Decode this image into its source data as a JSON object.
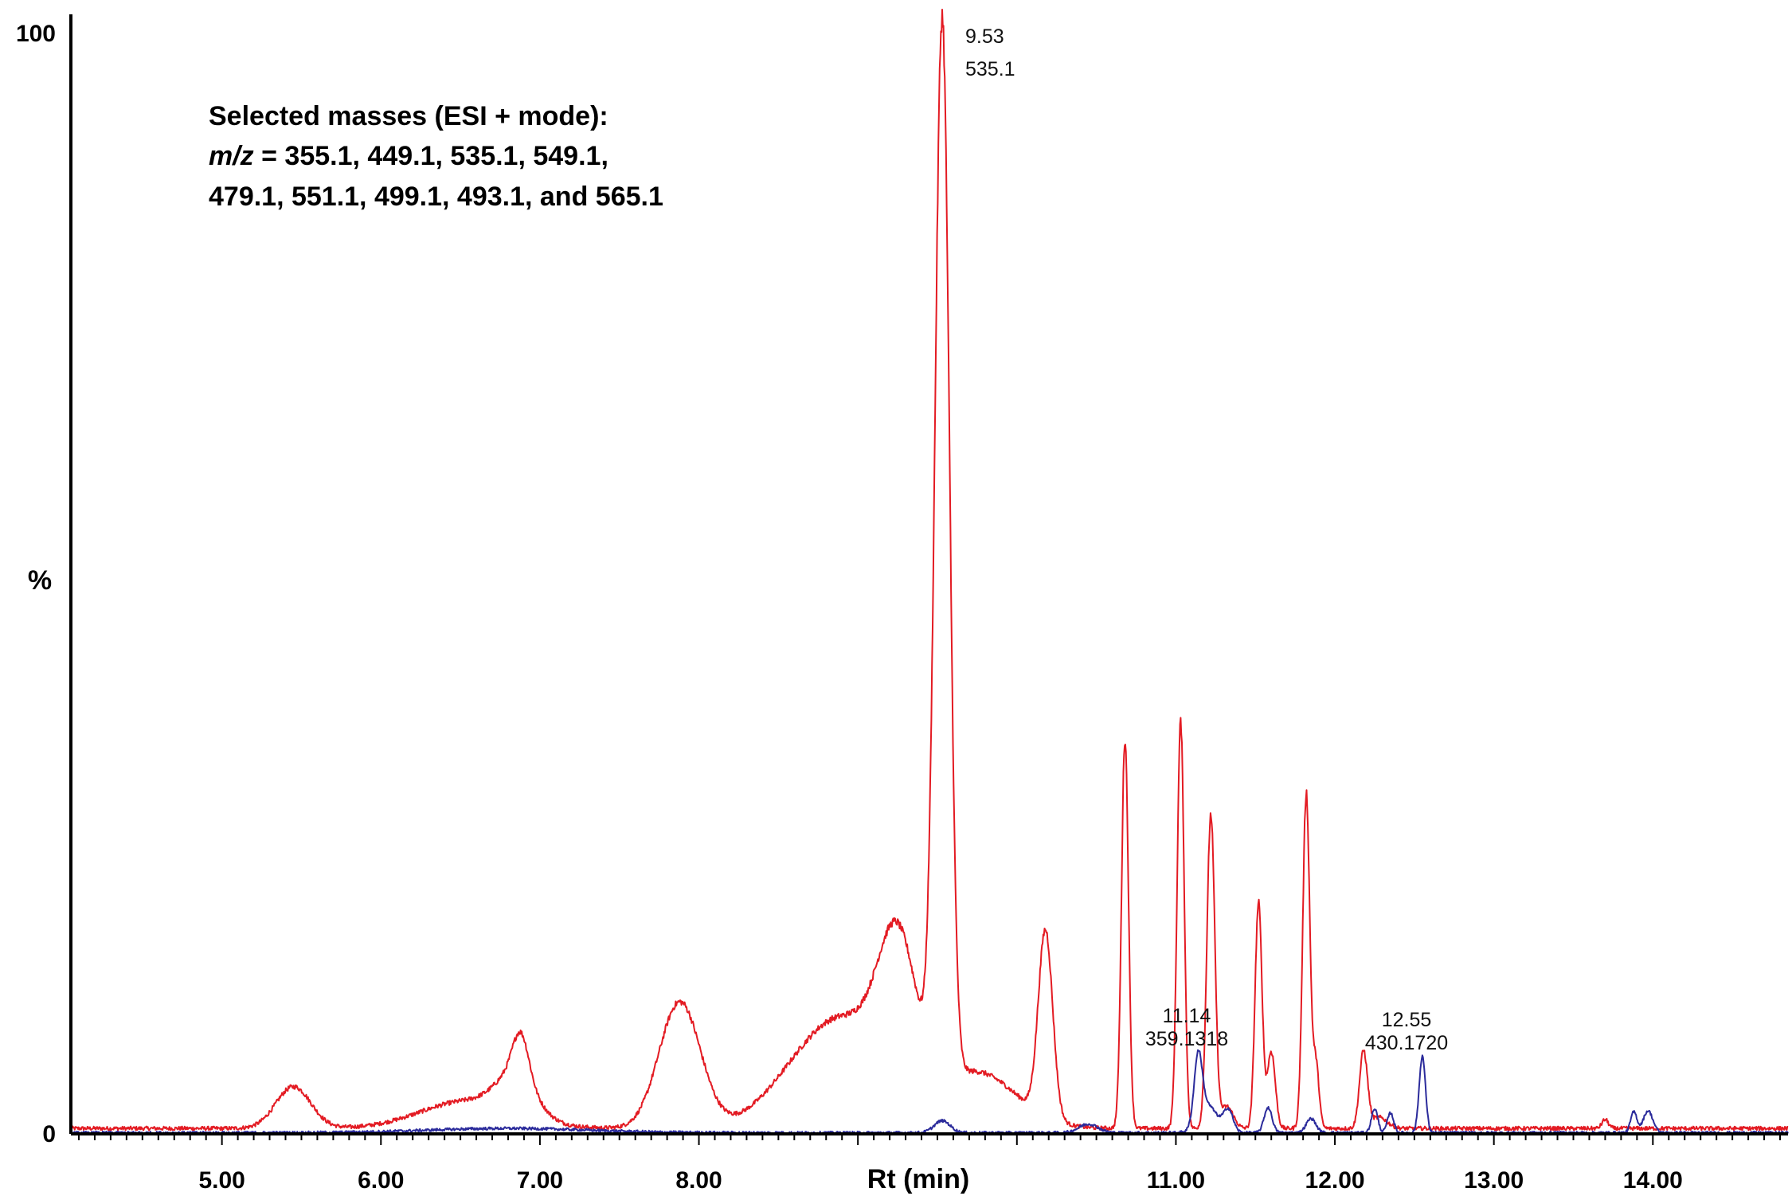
{
  "chart_data": {
    "type": "line",
    "title": "",
    "xlabel": "Rt (min)",
    "ylabel": "%",
    "xlim": [
      4.05,
      14.85
    ],
    "ylim": [
      0,
      100
    ],
    "x_ticks": [
      "5.00",
      "6.00",
      "7.00",
      "8.00",
      "11.00",
      "12.00",
      "13.00",
      "14.00"
    ],
    "x_tick_values": [
      5,
      6,
      7,
      8,
      11,
      12,
      13,
      14
    ],
    "y_ticks": [
      "0",
      "100"
    ],
    "y_tick_values": [
      0,
      100
    ],
    "grid": false,
    "legend": "none",
    "annotation": {
      "line1": "Selected masses (ESI + mode):",
      "line2_italic": "m/z",
      "line2_rest": " = 355.1, 449.1, 535.1, 549.1,",
      "line3": "479.1, 551.1, 499.1, 493.1, and 565.1"
    },
    "peak_labels": [
      {
        "rt": "9.53",
        "mz": "535.1",
        "x": 9.53,
        "y": 99
      },
      {
        "rt": "11.14",
        "mz": "359.1318",
        "x": 11.14,
        "y": 8.5
      },
      {
        "rt": "12.55",
        "mz": "430.1720",
        "x": 12.55,
        "y": 7.5
      }
    ],
    "series": [
      {
        "color": "#e31b23",
        "baseline": 0.5,
        "peaks": [
          {
            "x": 5.45,
            "h": 3.8,
            "w": 0.11
          },
          {
            "x": 6.55,
            "h": 2.5,
            "w": 0.3
          },
          {
            "x": 6.85,
            "h": 3.5,
            "w": 0.12
          },
          {
            "x": 6.88,
            "h": 4.0,
            "w": 0.05
          },
          {
            "x": 7.88,
            "h": 11.5,
            "w": 0.13
          },
          {
            "x": 8.5,
            "h": 0.6,
            "w": 0.2
          },
          {
            "x": 8.9,
            "h": 10.0,
            "w": 0.3
          },
          {
            "x": 9.25,
            "h": 13.0,
            "w": 0.12
          },
          {
            "x": 9.53,
            "h": 96.0,
            "w": 0.045
          },
          {
            "x": 9.75,
            "h": 5.0,
            "w": 0.25
          },
          {
            "x": 10.18,
            "h": 17.0,
            "w": 0.045
          },
          {
            "x": 10.68,
            "h": 35.5,
            "w": 0.022
          },
          {
            "x": 11.03,
            "h": 37.0,
            "w": 0.022
          },
          {
            "x": 11.22,
            "h": 28.5,
            "w": 0.025
          },
          {
            "x": 11.32,
            "h": 2.0,
            "w": 0.04
          },
          {
            "x": 11.52,
            "h": 20.5,
            "w": 0.022
          },
          {
            "x": 11.6,
            "h": 7.0,
            "w": 0.025
          },
          {
            "x": 11.82,
            "h": 30.5,
            "w": 0.022
          },
          {
            "x": 11.88,
            "h": 6.0,
            "w": 0.02
          },
          {
            "x": 12.18,
            "h": 7.0,
            "w": 0.025
          },
          {
            "x": 12.28,
            "h": 1.0,
            "w": 0.05
          },
          {
            "x": 13.7,
            "h": 0.8,
            "w": 0.02
          }
        ]
      },
      {
        "color": "#2b2b9b",
        "baseline": 0.1,
        "peaks": [
          {
            "x": 6.8,
            "h": 0.4,
            "w": 0.5
          },
          {
            "x": 9.53,
            "h": 1.1,
            "w": 0.05
          },
          {
            "x": 10.45,
            "h": 0.8,
            "w": 0.06
          },
          {
            "x": 11.14,
            "h": 6.0,
            "w": 0.025
          },
          {
            "x": 11.2,
            "h": 2.5,
            "w": 0.06
          },
          {
            "x": 11.33,
            "h": 2.0,
            "w": 0.03
          },
          {
            "x": 11.58,
            "h": 2.3,
            "w": 0.025
          },
          {
            "x": 11.85,
            "h": 1.3,
            "w": 0.03
          },
          {
            "x": 12.25,
            "h": 2.2,
            "w": 0.02
          },
          {
            "x": 12.35,
            "h": 1.8,
            "w": 0.02
          },
          {
            "x": 12.55,
            "h": 7.0,
            "w": 0.02
          },
          {
            "x": 13.88,
            "h": 1.9,
            "w": 0.02
          },
          {
            "x": 13.97,
            "h": 2.0,
            "w": 0.03
          }
        ]
      }
    ]
  }
}
